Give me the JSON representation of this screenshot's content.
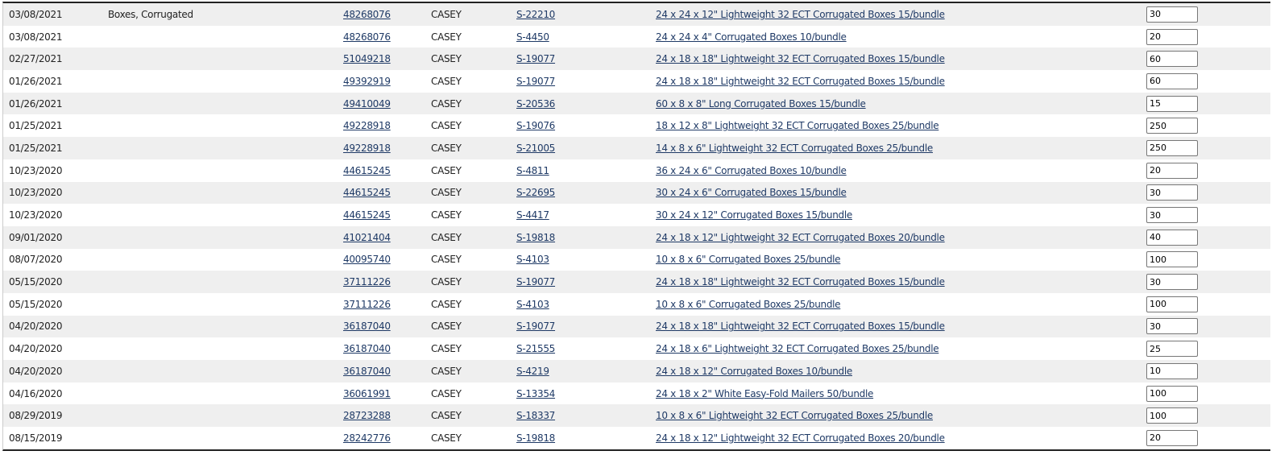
{
  "rows": [
    {
      "date": "03/08/2021",
      "category": "Boxes, Corrugated",
      "order": "48268076",
      "name": "CASEY",
      "sku": "S-22210",
      "description": "24 x 24 x 12\" Lightweight 32 ECT Corrugated Boxes 15/bundle",
      "qty": "30"
    },
    {
      "date": "03/08/2021",
      "category": "",
      "order": "48268076",
      "name": "CASEY",
      "sku": "S-4450",
      "description": "24 x 24 x 4\" Corrugated Boxes 10/bundle",
      "qty": "20"
    },
    {
      "date": "02/27/2021",
      "category": "",
      "order": "51049218",
      "name": "CASEY",
      "sku": "S-19077",
      "description": "24 x 18 x 18\" Lightweight 32 ECT Corrugated Boxes 15/bundle",
      "qty": "60"
    },
    {
      "date": "01/26/2021",
      "category": "",
      "order": "49392919",
      "name": "CASEY",
      "sku": "S-19077",
      "description": "24 x 18 x 18\" Lightweight 32 ECT Corrugated Boxes 15/bundle",
      "qty": "60"
    },
    {
      "date": "01/26/2021",
      "category": "",
      "order": "49410049",
      "name": "CASEY",
      "sku": "S-20536",
      "description": "60 x 8 x 8\" Long Corrugated Boxes 15/bundle",
      "qty": "15"
    },
    {
      "date": "01/25/2021",
      "category": "",
      "order": "49228918",
      "name": "CASEY",
      "sku": "S-19076",
      "description": "18 x 12 x 8\" Lightweight 32 ECT Corrugated Boxes 25/bundle",
      "qty": "250"
    },
    {
      "date": "01/25/2021",
      "category": "",
      "order": "49228918",
      "name": "CASEY",
      "sku": "S-21005",
      "description": "14 x 8 x 6\" Lightweight 32 ECT Corrugated Boxes 25/bundle",
      "qty": "250"
    },
    {
      "date": "10/23/2020",
      "category": "",
      "order": "44615245",
      "name": "CASEY",
      "sku": "S-4811",
      "description": "36 x 24 x 6\" Corrugated Boxes 10/bundle",
      "qty": "20"
    },
    {
      "date": "10/23/2020",
      "category": "",
      "order": "44615245",
      "name": "CASEY",
      "sku": "S-22695",
      "description": "30 x 24 x 6\" Corrugated Boxes 15/bundle",
      "qty": "30"
    },
    {
      "date": "10/23/2020",
      "category": "",
      "order": "44615245",
      "name": "CASEY",
      "sku": "S-4417",
      "description": "30 x 24 x 12\" Corrugated Boxes 15/bundle",
      "qty": "30"
    },
    {
      "date": "09/01/2020",
      "category": "",
      "order": "41021404",
      "name": "CASEY",
      "sku": "S-19818",
      "description": "24 x 18 x 12\" Lightweight 32 ECT Corrugated Boxes 20/bundle",
      "qty": "40"
    },
    {
      "date": "08/07/2020",
      "category": "",
      "order": "40095740",
      "name": "CASEY",
      "sku": "S-4103",
      "description": "10 x 8 x 6\" Corrugated Boxes 25/bundle",
      "qty": "100"
    },
    {
      "date": "05/15/2020",
      "category": "",
      "order": "37111226",
      "name": "CASEY",
      "sku": "S-19077",
      "description": "24 x 18 x 18\" Lightweight 32 ECT Corrugated Boxes 15/bundle",
      "qty": "30"
    },
    {
      "date": "05/15/2020",
      "category": "",
      "order": "37111226",
      "name": "CASEY",
      "sku": "S-4103",
      "description": "10 x 8 x 6\" Corrugated Boxes 25/bundle",
      "qty": "100"
    },
    {
      "date": "04/20/2020",
      "category": "",
      "order": "36187040",
      "name": "CASEY",
      "sku": "S-19077",
      "description": "24 x 18 x 18\" Lightweight 32 ECT Corrugated Boxes 15/bundle",
      "qty": "30"
    },
    {
      "date": "04/20/2020",
      "category": "",
      "order": "36187040",
      "name": "CASEY",
      "sku": "S-21555",
      "description": "24 x 18 x 6\" Lightweight 32 ECT Corrugated Boxes 25/bundle",
      "qty": "25"
    },
    {
      "date": "04/20/2020",
      "category": "",
      "order": "36187040",
      "name": "CASEY",
      "sku": "S-4219",
      "description": "24 x 18 x 12\" Corrugated Boxes 10/bundle",
      "qty": "10"
    },
    {
      "date": "04/16/2020",
      "category": "",
      "order": "36061991",
      "name": "CASEY",
      "sku": "S-13354",
      "description": "24 x 18 x 2\" White Easy-Fold Mailers 50/bundle",
      "qty": "100"
    },
    {
      "date": "08/29/2019",
      "category": "",
      "order": "28723288",
      "name": "CASEY",
      "sku": "S-18337",
      "description": "10 x 8 x 6\" Lightweight 32 ECT Corrugated Boxes 25/bundle",
      "qty": "100"
    },
    {
      "date": "08/15/2019",
      "category": "",
      "order": "28242776",
      "name": "CASEY",
      "sku": "S-19818",
      "description": "24 x 18 x 12\" Lightweight 32 ECT Corrugated Boxes 20/bundle",
      "qty": "20"
    }
  ]
}
